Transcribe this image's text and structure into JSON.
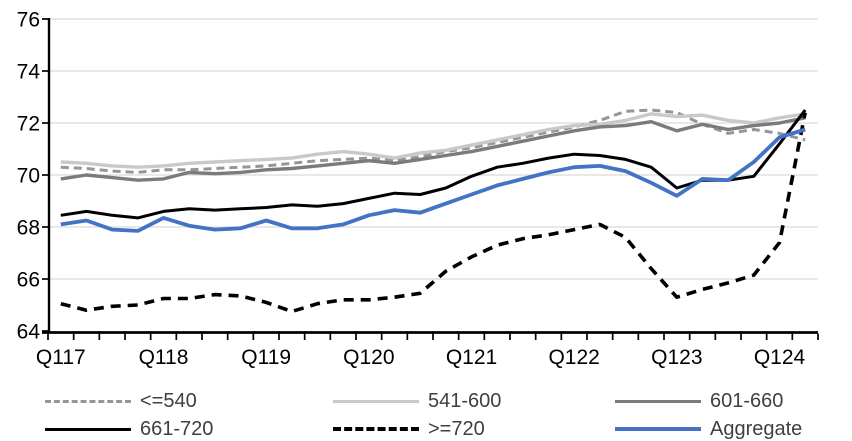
{
  "chart_data": {
    "type": "line",
    "title": "",
    "xlabel": "",
    "ylabel": "",
    "ylim": [
      64,
      76
    ],
    "ytick_step": 2,
    "ytick_labels": [
      "64",
      "66",
      "68",
      "70",
      "72",
      "74",
      "76"
    ],
    "grid": true,
    "gridline_color": "#d9d9d9",
    "axis_color": "#000000",
    "legend_position": "bottom",
    "visible_x_labels": [
      "Q117",
      "Q118",
      "Q119",
      "Q120",
      "Q121",
      "Q122",
      "Q123",
      "Q124"
    ],
    "xtick_label_every": 4,
    "categories": [
      "Q117",
      "Q217",
      "Q317",
      "Q417",
      "Q118",
      "Q218",
      "Q318",
      "Q418",
      "Q119",
      "Q219",
      "Q319",
      "Q419",
      "Q120",
      "Q220",
      "Q320",
      "Q420",
      "Q121",
      "Q221",
      "Q321",
      "Q421",
      "Q122",
      "Q222",
      "Q322",
      "Q422",
      "Q123",
      "Q223",
      "Q323",
      "Q423",
      "Q124",
      "Q224"
    ],
    "series": [
      {
        "name": "<=540",
        "color": "#969696",
        "dash": true,
        "width": 3,
        "dash_pattern": "8 5",
        "values": [
          70.3,
          70.25,
          70.15,
          70.1,
          70.2,
          70.2,
          70.25,
          70.3,
          70.35,
          70.45,
          70.55,
          70.6,
          70.65,
          70.55,
          70.7,
          70.9,
          71.05,
          71.25,
          71.45,
          71.65,
          71.85,
          72.1,
          72.45,
          72.5,
          72.4,
          71.95,
          71.6,
          71.75,
          71.6,
          71.35
        ]
      },
      {
        "name": "541-600",
        "color": "#c9c9c9",
        "dash": false,
        "width": 3.4,
        "dash_pattern": "",
        "values": [
          70.5,
          70.45,
          70.35,
          70.3,
          70.35,
          70.45,
          70.5,
          70.55,
          70.6,
          70.65,
          70.8,
          70.9,
          70.8,
          70.65,
          70.85,
          70.95,
          71.15,
          71.35,
          71.55,
          71.75,
          71.9,
          71.95,
          72.1,
          72.35,
          72.25,
          72.3,
          72.1,
          72.0,
          72.2,
          72.35
        ]
      },
      {
        "name": "601-660",
        "color": "#7b7b7b",
        "dash": false,
        "width": 3.4,
        "dash_pattern": "",
        "values": [
          69.85,
          70.0,
          69.9,
          69.8,
          69.85,
          70.1,
          70.05,
          70.1,
          70.2,
          70.25,
          70.35,
          70.45,
          70.55,
          70.45,
          70.6,
          70.75,
          70.9,
          71.1,
          71.3,
          71.5,
          71.7,
          71.85,
          71.9,
          72.05,
          71.7,
          71.95,
          71.75,
          71.9,
          72.0,
          72.2
        ]
      },
      {
        "name": "661-720",
        "color": "#000000",
        "dash": false,
        "width": 3,
        "dash_pattern": "",
        "values": [
          68.45,
          68.6,
          68.45,
          68.35,
          68.6,
          68.7,
          68.65,
          68.7,
          68.75,
          68.85,
          68.8,
          68.9,
          69.1,
          69.3,
          69.25,
          69.5,
          69.95,
          70.3,
          70.45,
          70.65,
          70.8,
          70.75,
          70.6,
          70.3,
          69.5,
          69.8,
          69.8,
          69.95,
          71.2,
          72.5
        ]
      },
      {
        "name": ">=720",
        "color": "#000000",
        "dash": true,
        "width": 3.6,
        "dash_pattern": "10 7",
        "values": [
          65.05,
          64.8,
          64.95,
          65.0,
          65.25,
          65.25,
          65.4,
          65.35,
          65.1,
          64.75,
          65.05,
          65.2,
          65.2,
          65.3,
          65.45,
          66.3,
          66.85,
          67.3,
          67.55,
          67.7,
          67.9,
          68.1,
          67.6,
          66.4,
          65.3,
          65.6,
          65.85,
          66.15,
          67.4,
          72.4
        ]
      },
      {
        "name": "Aggregate",
        "color": "#4472c4",
        "dash": false,
        "width": 3.8,
        "dash_pattern": "",
        "values": [
          68.1,
          68.25,
          67.9,
          67.85,
          68.35,
          68.05,
          67.9,
          67.95,
          68.25,
          67.95,
          67.95,
          68.1,
          68.45,
          68.65,
          68.55,
          68.9,
          69.25,
          69.6,
          69.85,
          70.1,
          70.3,
          70.35,
          70.15,
          69.7,
          69.2,
          69.85,
          69.8,
          70.5,
          71.45,
          71.75
        ]
      }
    ]
  }
}
